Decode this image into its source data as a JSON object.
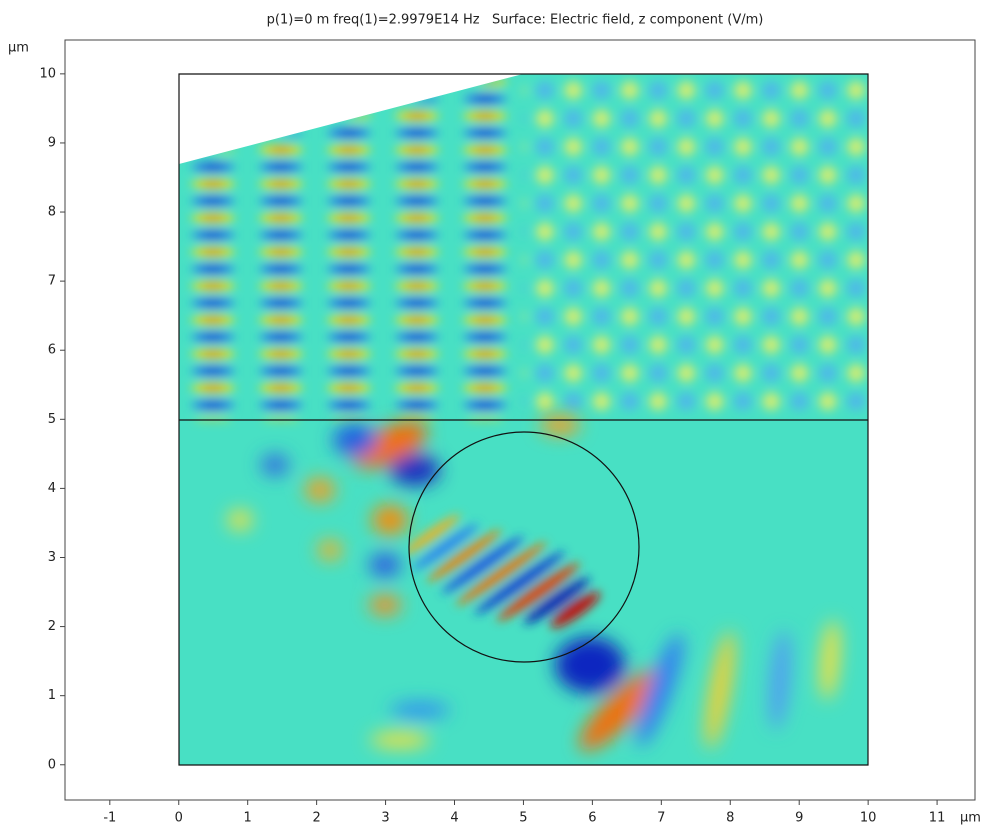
{
  "chart_data": {
    "type": "surface",
    "title": "p(1)=0 m freq(1)=2.9979E14 Hz   Surface: Electric field, z component (V/m)",
    "x_unit": "µm",
    "y_unit": "µm",
    "xlim": [
      -1.65,
      11.55
    ],
    "ylim": [
      -0.51,
      10.49
    ],
    "xticks": [
      -1,
      0,
      1,
      2,
      3,
      4,
      5,
      6,
      7,
      8,
      9,
      10,
      11
    ],
    "yticks": [
      0,
      1,
      2,
      3,
      4,
      5,
      6,
      7,
      8,
      9,
      10
    ]
  }
}
